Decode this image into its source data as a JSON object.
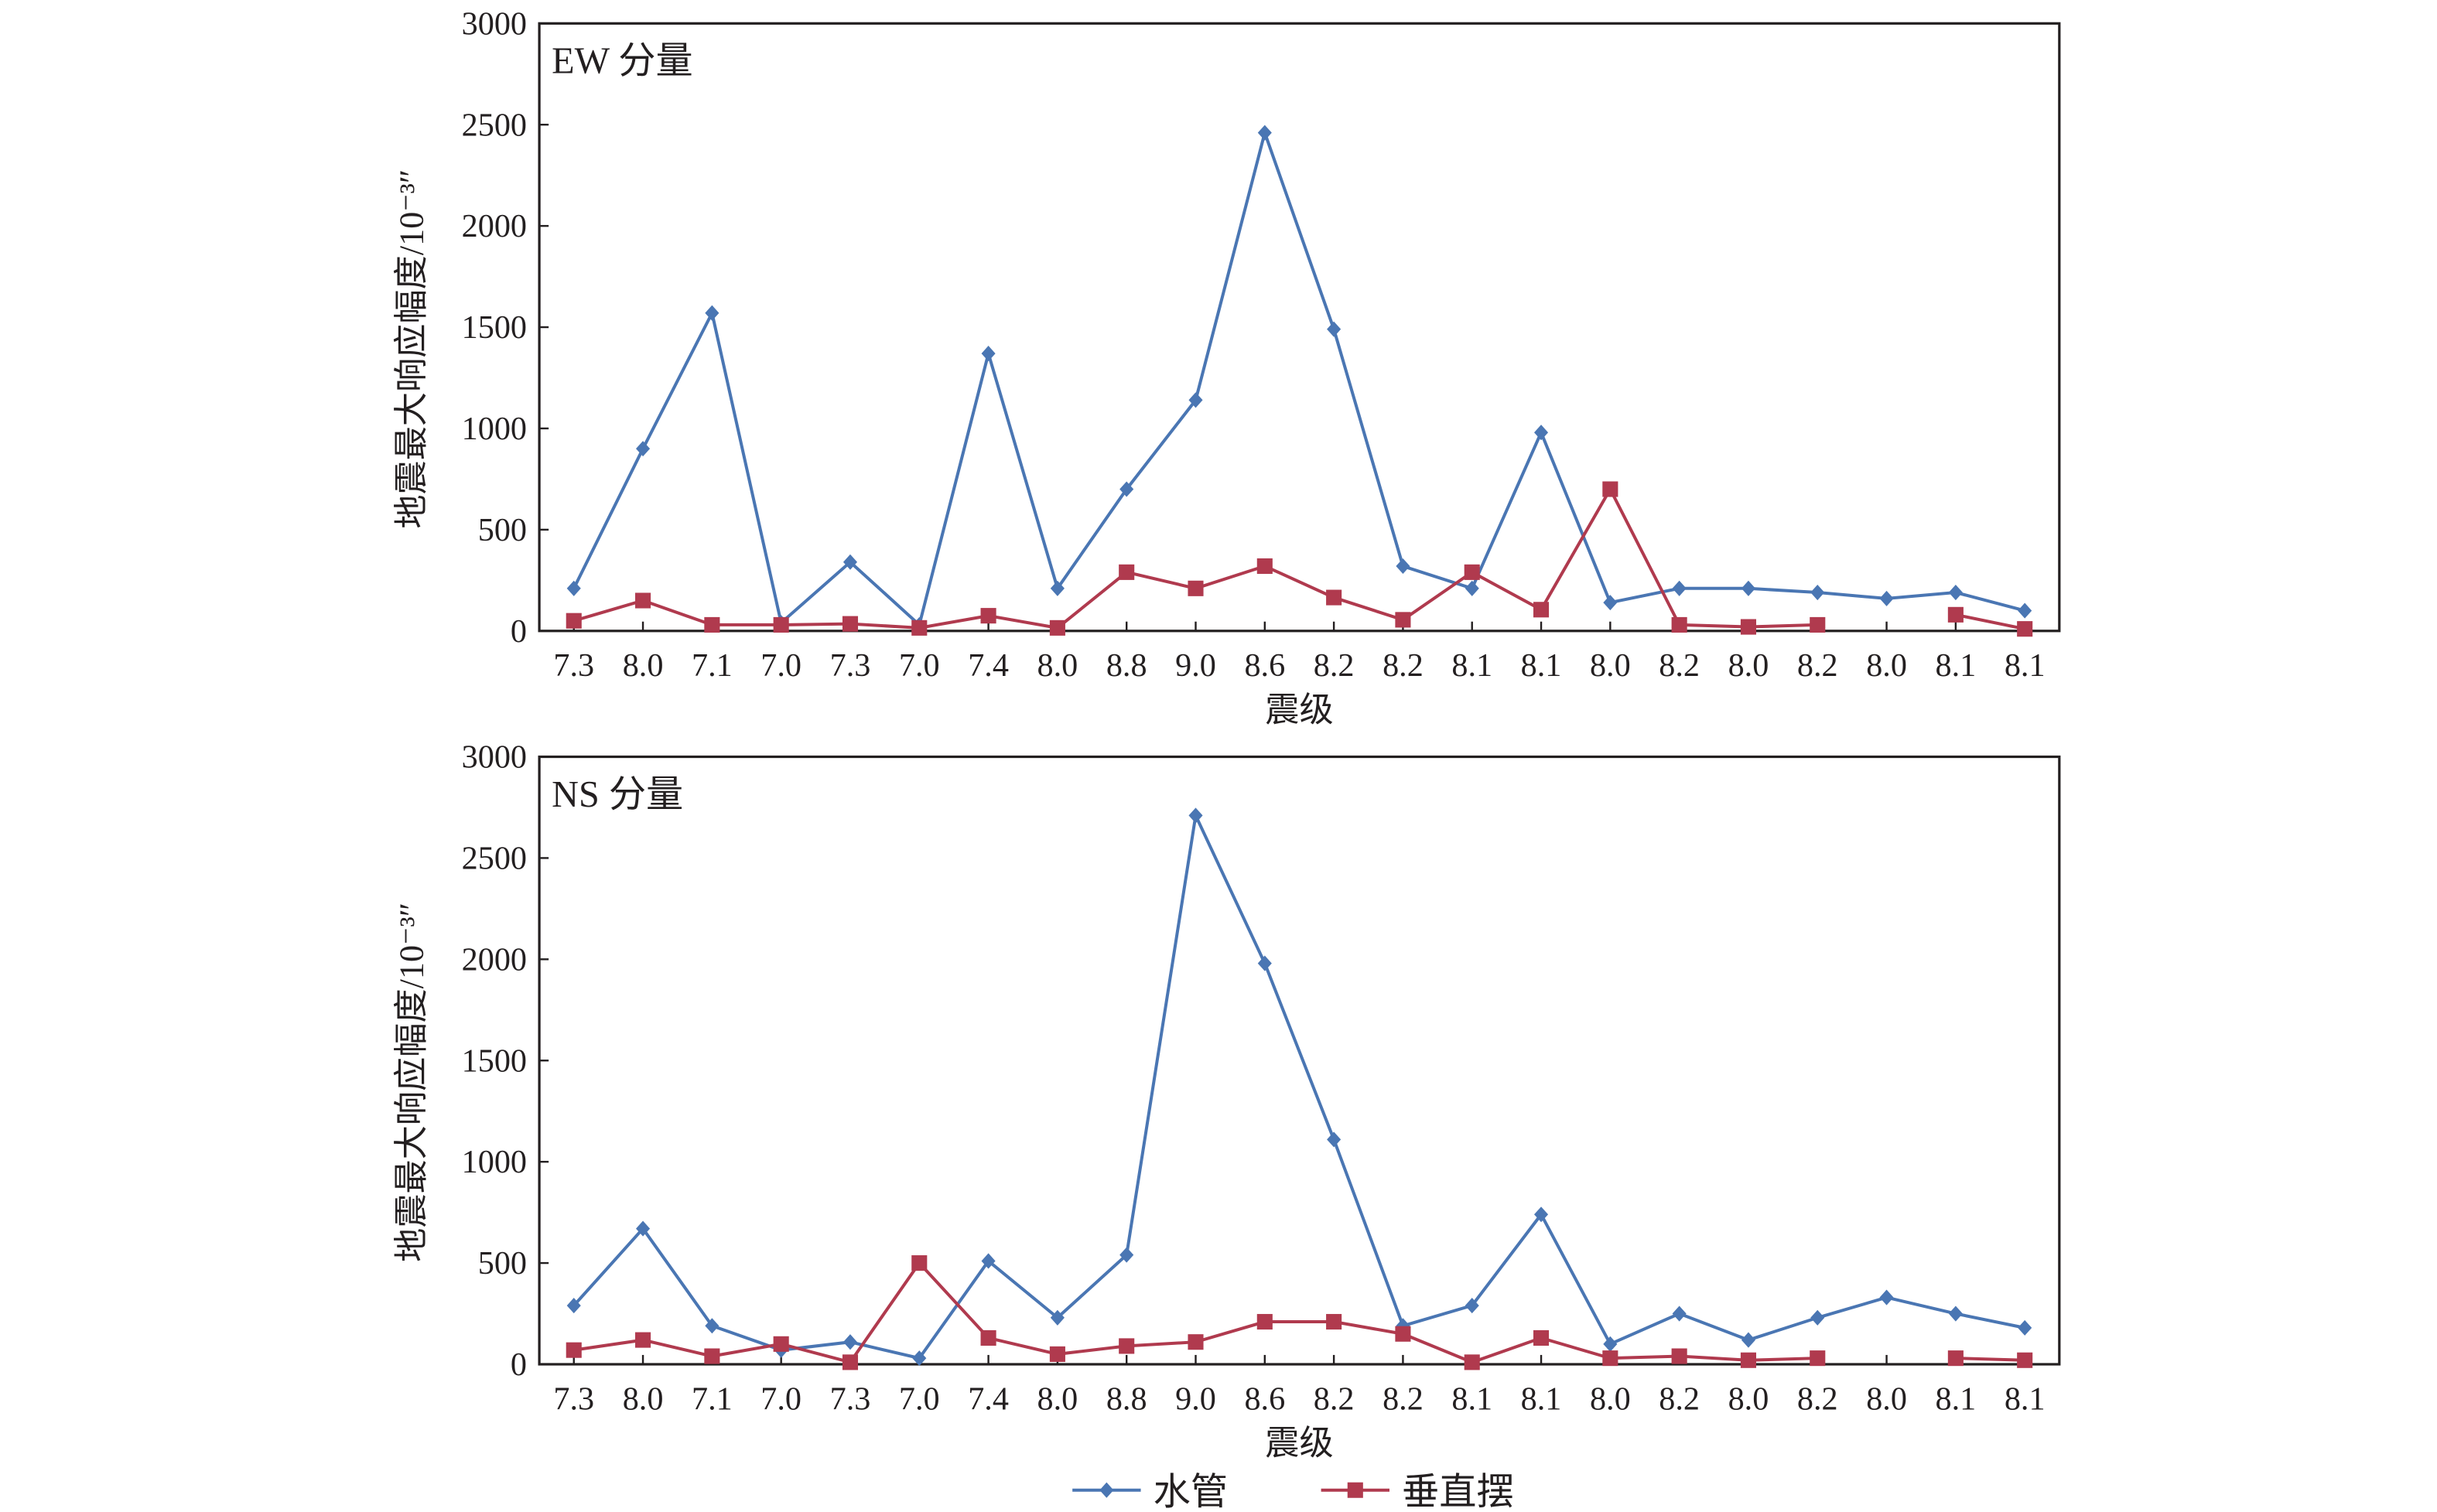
{
  "chart_data": [
    {
      "type": "line",
      "title": "EW 分量",
      "xlabel": "震级",
      "ylabel": "地震最大响应幅度/10⁻³″",
      "ylim": [
        0,
        3000
      ],
      "yticks": [
        "0",
        "500",
        "1000",
        "1500",
        "2000",
        "2500",
        "3000"
      ],
      "categories": [
        "7.3",
        "8.0",
        "7.1",
        "7.0",
        "7.3",
        "7.0",
        "7.4",
        "8.0",
        "8.8",
        "9.0",
        "8.6",
        "8.2",
        "8.2",
        "8.1",
        "8.1",
        "8.0",
        "8.2",
        "8.0",
        "8.2",
        "8.0",
        "8.1",
        "8.1"
      ],
      "series": [
        {
          "name": "水管",
          "color": "#4a76b3",
          "marker": "diamond",
          "values": [
            210,
            900,
            1570,
            40,
            340,
            30,
            1370,
            210,
            700,
            1140,
            2460,
            1490,
            320,
            210,
            980,
            140,
            210,
            210,
            190,
            160,
            190,
            100
          ]
        },
        {
          "name": "垂直摆",
          "color": "#b03a4e",
          "marker": "square",
          "values": [
            50,
            150,
            30,
            30,
            35,
            15,
            75,
            15,
            290,
            210,
            320,
            165,
            55,
            290,
            105,
            700,
            30,
            20,
            30,
            null,
            80,
            10
          ]
        }
      ]
    },
    {
      "type": "line",
      "title": "NS 分量",
      "xlabel": "震级",
      "ylabel": "地震最大响应幅度/10⁻³″",
      "ylim": [
        0,
        3000
      ],
      "yticks": [
        "0",
        "500",
        "1000",
        "1500",
        "2000",
        "2500",
        "3000"
      ],
      "categories": [
        "7.3",
        "8.0",
        "7.1",
        "7.0",
        "7.3",
        "7.0",
        "7.4",
        "8.0",
        "8.8",
        "9.0",
        "8.6",
        "8.2",
        "8.2",
        "8.1",
        "8.1",
        "8.0",
        "8.2",
        "8.0",
        "8.2",
        "8.0",
        "8.1",
        "8.1"
      ],
      "series": [
        {
          "name": "水管",
          "color": "#4a76b3",
          "marker": "diamond",
          "values": [
            290,
            670,
            190,
            70,
            110,
            30,
            510,
            230,
            540,
            2710,
            1980,
            1110,
            190,
            290,
            740,
            100,
            250,
            120,
            230,
            330,
            250,
            180
          ]
        },
        {
          "name": "垂直摆",
          "color": "#b03a4e",
          "marker": "square",
          "values": [
            70,
            120,
            40,
            100,
            10,
            500,
            130,
            50,
            90,
            110,
            210,
            210,
            150,
            10,
            130,
            30,
            40,
            20,
            30,
            null,
            30,
            20
          ]
        }
      ]
    }
  ],
  "legend": {
    "position": "bottom-center",
    "items": [
      "水管",
      "垂直摆"
    ]
  }
}
